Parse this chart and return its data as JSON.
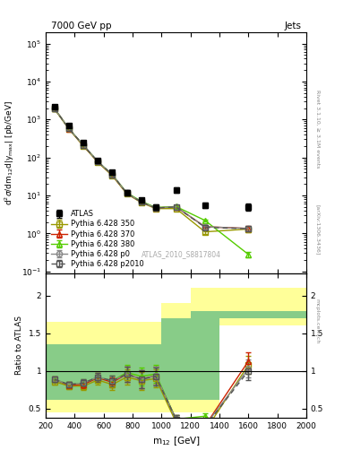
{
  "title_left": "7000 GeV pp",
  "title_right": "Jets",
  "ylabel_main": "d$^2\\sigma$/dm$_{12}$d|y$_{\\mathrm{max}}$| [pb/GeV]",
  "ylabel_ratio": "Ratio to ATLAS",
  "xlabel": "m$_{12}$ [GeV]",
  "watermark": "ATLAS_2010_S8817804",
  "right_label1": "Rivet 3.1.10, ≥ 3.1M events",
  "right_label2": "[arXiv:1306.3436]",
  "right_label3": "mcplots.cern.ch",
  "atlas_x": [
    260,
    360,
    460,
    560,
    660,
    760,
    860,
    960,
    1100,
    1300,
    1600
  ],
  "atlas_y": [
    2200,
    700,
    250,
    85,
    40,
    12,
    7.5,
    5.0,
    14.0,
    5.5,
    5.0
  ],
  "atlas_yerr_lo": [
    200,
    60,
    25,
    8,
    4,
    1.5,
    1.0,
    0.7,
    2.0,
    0.8,
    1.0
  ],
  "atlas_yerr_hi": [
    200,
    60,
    25,
    8,
    4,
    1.5,
    1.0,
    0.7,
    2.0,
    0.8,
    1.0
  ],
  "py350_x": [
    260,
    360,
    460,
    560,
    660,
    760,
    860,
    960,
    1100,
    1300,
    1600
  ],
  "py350_y": [
    1900,
    560,
    200,
    75,
    33,
    11,
    6.5,
    4.5,
    4.5,
    1.1,
    1.3
  ],
  "py350_yerr": [
    80,
    30,
    12,
    5,
    2.5,
    0.8,
    0.4,
    0.3,
    0.4,
    0.15,
    0.2
  ],
  "py370_x": [
    260,
    360,
    460,
    560,
    660,
    760,
    860,
    960,
    1100,
    1300,
    1600
  ],
  "py370_y": [
    1950,
    570,
    205,
    77,
    34,
    11.5,
    6.7,
    4.7,
    5.0,
    1.5,
    1.35
  ],
  "py370_yerr": [
    80,
    30,
    12,
    5,
    2.5,
    0.8,
    0.4,
    0.3,
    0.4,
    0.15,
    0.2
  ],
  "py380_x": [
    260,
    360,
    460,
    560,
    660,
    760,
    860,
    960,
    1100,
    1300,
    1600
  ],
  "py380_y": [
    1950,
    575,
    210,
    78,
    35,
    11.8,
    7.0,
    4.8,
    5.1,
    2.2,
    0.28
  ],
  "py380_yerr": [
    80,
    30,
    12,
    5,
    2.5,
    0.8,
    0.4,
    0.3,
    0.4,
    0.15,
    0.05
  ],
  "pyp0_x": [
    260,
    360,
    460,
    560,
    660,
    760,
    860,
    960,
    1100,
    1300,
    1600
  ],
  "pyp0_y": [
    1950,
    575,
    210,
    78,
    35,
    11.5,
    6.7,
    4.7,
    5.0,
    1.5,
    1.35
  ],
  "pyp0_yerr": [
    80,
    30,
    12,
    5,
    2.5,
    0.8,
    0.4,
    0.3,
    0.4,
    0.15,
    0.2
  ],
  "pyp2010_x": [
    260,
    360,
    460,
    560,
    660,
    760,
    860,
    960,
    1100,
    1300,
    1600
  ],
  "pyp2010_y": [
    1950,
    575,
    210,
    78,
    35,
    11.5,
    6.7,
    4.65,
    5.0,
    1.45,
    1.32
  ],
  "pyp2010_yerr": [
    80,
    30,
    12,
    5,
    2.5,
    0.8,
    0.4,
    0.3,
    0.4,
    0.15,
    0.2
  ],
  "ratio_x": [
    260,
    360,
    460,
    560,
    660,
    760,
    860,
    960,
    1100,
    1300,
    1600
  ],
  "ratio_py350": [
    0.86,
    0.8,
    0.8,
    0.88,
    0.82,
    0.92,
    0.87,
    0.9,
    0.32,
    0.2,
    1.08
  ],
  "ratio_py370": [
    0.89,
    0.81,
    0.82,
    0.91,
    0.85,
    0.96,
    0.89,
    0.94,
    0.36,
    0.27,
    1.13
  ],
  "ratio_py380": [
    0.89,
    0.82,
    0.84,
    0.92,
    0.87,
    0.98,
    0.93,
    0.96,
    0.36,
    0.4,
    0.06
  ],
  "ratio_pyp0": [
    0.89,
    0.82,
    0.84,
    0.92,
    0.87,
    0.96,
    0.89,
    0.94,
    0.36,
    0.27,
    1.03
  ],
  "ratio_pyp2010": [
    0.89,
    0.82,
    0.84,
    0.92,
    0.87,
    0.96,
    0.89,
    0.93,
    0.36,
    0.26,
    1.0
  ],
  "ratio_err_py350": [
    0.04,
    0.04,
    0.05,
    0.06,
    0.07,
    0.1,
    0.12,
    0.12,
    0.06,
    0.04,
    0.12
  ],
  "ratio_err_py370": [
    0.04,
    0.04,
    0.05,
    0.06,
    0.07,
    0.1,
    0.12,
    0.12,
    0.06,
    0.04,
    0.12
  ],
  "ratio_err_py380": [
    0.04,
    0.04,
    0.05,
    0.06,
    0.07,
    0.1,
    0.12,
    0.12,
    0.06,
    0.04,
    0.02
  ],
  "ratio_err_pyp0": [
    0.04,
    0.04,
    0.05,
    0.06,
    0.07,
    0.1,
    0.12,
    0.12,
    0.06,
    0.04,
    0.12
  ],
  "ratio_err_pyp2010": [
    0.04,
    0.04,
    0.05,
    0.06,
    0.07,
    0.1,
    0.12,
    0.12,
    0.06,
    0.04,
    0.12
  ],
  "band_x_edges": [
    200,
    300,
    400,
    500,
    600,
    700,
    800,
    900,
    1000,
    1200,
    1400,
    1800,
    2000
  ],
  "band_yellow_lo": [
    0.45,
    0.45,
    0.45,
    0.45,
    0.45,
    0.45,
    0.45,
    0.45,
    0.45,
    0.45,
    1.6,
    1.6
  ],
  "band_yellow_hi": [
    1.65,
    1.65,
    1.65,
    1.65,
    1.65,
    1.65,
    1.65,
    1.65,
    1.9,
    2.1,
    2.1,
    2.1
  ],
  "band_green_lo": [
    0.62,
    0.62,
    0.62,
    0.62,
    0.62,
    0.62,
    0.62,
    0.62,
    0.62,
    0.62,
    1.7,
    1.7
  ],
  "band_green_hi": [
    1.35,
    1.35,
    1.35,
    1.35,
    1.35,
    1.35,
    1.35,
    1.35,
    1.7,
    1.8,
    1.8,
    1.8
  ],
  "color_atlas": "#000000",
  "color_py350": "#999900",
  "color_py370": "#cc2200",
  "color_py380": "#55cc00",
  "color_pyp0": "#888888",
  "color_pyp2010": "#555555",
  "color_yellow": "#ffff99",
  "color_green": "#88cc88",
  "xlim": [
    200,
    2000
  ],
  "ylim_main": [
    0.09,
    200000.0
  ],
  "ylim_ratio": [
    0.38,
    2.3
  ]
}
